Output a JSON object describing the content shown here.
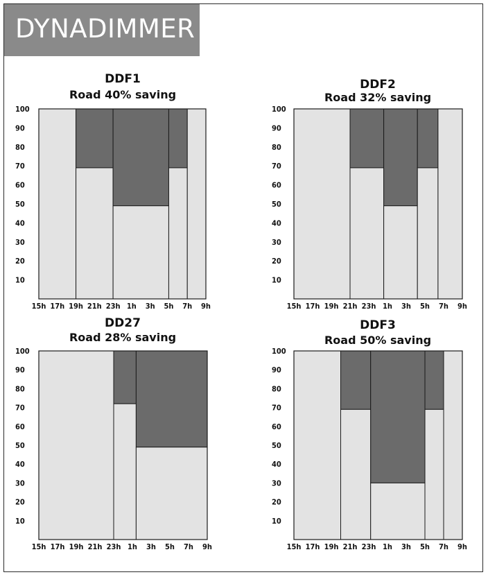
{
  "header": {
    "title": "DYNADIMMER"
  },
  "colors": {
    "light": "#e3e3e3",
    "dark": "#6b6b6b",
    "border": "#1a1a1a"
  },
  "chart_data": [
    {
      "type": "bar",
      "title": "DDF1",
      "subtitle": "Road 40% saving",
      "ylim": [
        0,
        100
      ],
      "y_ticks": [
        "100",
        "90",
        "80",
        "70",
        "60",
        "50",
        "40",
        "30",
        "20",
        "10"
      ],
      "x_ticks": [
        "15h",
        "17h",
        "19h",
        "21h",
        "23h",
        "1h",
        "3h",
        "5h",
        "7h",
        "9h"
      ],
      "hours_start": 15,
      "hours_end": 33,
      "segments": [
        {
          "start": 15,
          "end": 19,
          "level": 100
        },
        {
          "start": 19,
          "end": 23,
          "level": 69
        },
        {
          "start": 23,
          "end": 29,
          "level": 49
        },
        {
          "start": 29,
          "end": 31,
          "level": 69
        },
        {
          "start": 31,
          "end": 33,
          "level": 100
        }
      ]
    },
    {
      "type": "bar",
      "title": "DDF2",
      "subtitle": "Road 32% saving",
      "ylim": [
        0,
        100
      ],
      "y_ticks": [
        "100",
        "90",
        "80",
        "70",
        "60",
        "50",
        "40",
        "30",
        "20",
        "10"
      ],
      "x_ticks": [
        "15h",
        "17h",
        "19h",
        "21h",
        "23h",
        "1h",
        "3h",
        "5h",
        "7h",
        "9h"
      ],
      "hours_start": 15,
      "hours_end": 33,
      "segments": [
        {
          "start": 15,
          "end": 21,
          "level": 100
        },
        {
          "start": 21,
          "end": 24.6,
          "level": 69
        },
        {
          "start": 24.6,
          "end": 28.2,
          "level": 49
        },
        {
          "start": 28.2,
          "end": 30.4,
          "level": 69
        },
        {
          "start": 30.4,
          "end": 33,
          "level": 100
        }
      ]
    },
    {
      "type": "bar",
      "title": "DD27",
      "subtitle": "Road 28% saving",
      "ylim": [
        0,
        100
      ],
      "y_ticks": [
        "100",
        "90",
        "80",
        "70",
        "60",
        "50",
        "40",
        "30",
        "20",
        "10"
      ],
      "x_ticks": [
        "15h",
        "17h",
        "19h",
        "21h",
        "23h",
        "1h",
        "3h",
        "5h",
        "7h",
        "9h"
      ],
      "hours_start": 15,
      "hours_end": 33,
      "segments": [
        {
          "start": 15,
          "end": 23,
          "level": 100
        },
        {
          "start": 23,
          "end": 25.4,
          "level": 72
        },
        {
          "start": 25.4,
          "end": 33,
          "level": 49
        }
      ]
    },
    {
      "type": "bar",
      "title": "DDF3",
      "subtitle": "Road 50% saving",
      "ylim": [
        0,
        100
      ],
      "y_ticks": [
        "100",
        "90",
        "80",
        "70",
        "60",
        "50",
        "40",
        "30",
        "20",
        "10"
      ],
      "x_ticks": [
        "15h",
        "17h",
        "19h",
        "21h",
        "23h",
        "1h",
        "3h",
        "5h",
        "7h",
        "9h"
      ],
      "hours_start": 15,
      "hours_end": 33,
      "segments": [
        {
          "start": 15,
          "end": 20,
          "level": 100
        },
        {
          "start": 20,
          "end": 23.2,
          "level": 69
        },
        {
          "start": 23.2,
          "end": 29,
          "level": 30
        },
        {
          "start": 29,
          "end": 31,
          "level": 69
        },
        {
          "start": 31,
          "end": 33,
          "level": 100
        }
      ]
    }
  ]
}
